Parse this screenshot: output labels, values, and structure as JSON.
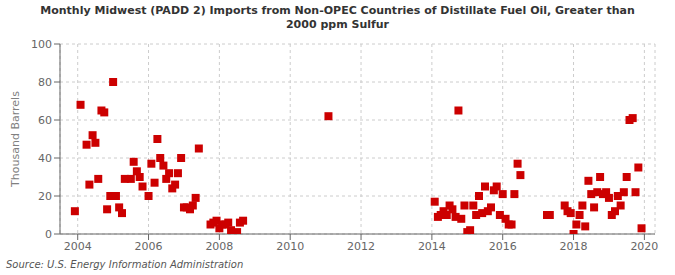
{
  "chart_data": {
    "type": "scatter",
    "title": "Monthly Midwest (PADD 2) Imports from Non-OPEC Countries of Distillate Fuel Oil, Greater than\n2000 ppm Sulfur",
    "ylabel": "Thousand Barrels",
    "annotation": "Source: U.S. Energy Information Administration",
    "color": "#cc0000",
    "marker": "square",
    "grid": true,
    "xlim": [
      2003.5,
      2020.3
    ],
    "ylim": [
      0,
      100
    ],
    "xticks": [
      2004,
      2006,
      2008,
      2010,
      2012,
      2014,
      2016,
      2018,
      2020
    ],
    "yticks": [
      0,
      20,
      40,
      60,
      80,
      100
    ],
    "x": [
      2003.92,
      2004.08,
      2004.25,
      2004.33,
      2004.42,
      2004.5,
      2004.58,
      2004.67,
      2004.75,
      2004.83,
      2004.92,
      2005.0,
      2005.08,
      2005.17,
      2005.25,
      2005.33,
      2005.5,
      2005.58,
      2005.67,
      2005.75,
      2005.83,
      2006.0,
      2006.08,
      2006.17,
      2006.25,
      2006.33,
      2006.42,
      2006.5,
      2006.58,
      2006.67,
      2006.75,
      2006.83,
      2006.92,
      2007.0,
      2007.08,
      2007.17,
      2007.25,
      2007.33,
      2007.42,
      2007.75,
      2007.83,
      2007.92,
      2008.0,
      2008.08,
      2008.17,
      2008.25,
      2008.33,
      2008.5,
      2008.58,
      2008.67,
      2011.08,
      2014.08,
      2014.17,
      2014.25,
      2014.33,
      2014.42,
      2014.5,
      2014.58,
      2014.67,
      2014.75,
      2014.83,
      2014.92,
      2015.0,
      2015.08,
      2015.17,
      2015.25,
      2015.33,
      2015.42,
      2015.5,
      2015.58,
      2015.67,
      2015.75,
      2015.83,
      2015.92,
      2016.0,
      2016.08,
      2016.17,
      2016.25,
      2016.33,
      2016.42,
      2016.5,
      2017.25,
      2017.33,
      2017.75,
      2017.83,
      2017.92,
      2018.0,
      2018.08,
      2018.17,
      2018.25,
      2018.33,
      2018.42,
      2018.5,
      2018.58,
      2018.67,
      2018.75,
      2018.83,
      2018.92,
      2019.0,
      2019.08,
      2019.17,
      2019.25,
      2019.33,
      2019.42,
      2019.5,
      2019.58,
      2019.67,
      2019.75,
      2019.83,
      2019.92
    ],
    "values": [
      12,
      68,
      47,
      26,
      52,
      48,
      29,
      65,
      64,
      13,
      20,
      80,
      20,
      14,
      11,
      29,
      29,
      38,
      33,
      30,
      25,
      20,
      37,
      27,
      50,
      40,
      36,
      29,
      32,
      24,
      26,
      32,
      40,
      14,
      14,
      13,
      15,
      19,
      45,
      5,
      6,
      7,
      3,
      5,
      5,
      6,
      2,
      1,
      6,
      7,
      62,
      17,
      9,
      10,
      12,
      10,
      15,
      13,
      9,
      65,
      8,
      15,
      1,
      2,
      15,
      10,
      20,
      11,
      25,
      12,
      14,
      23,
      25,
      10,
      21,
      8,
      5,
      5,
      21,
      37,
      31,
      10,
      10,
      15,
      12,
      11,
      0,
      5,
      10,
      15,
      4,
      28,
      21,
      14,
      22,
      30,
      21,
      22,
      19,
      10,
      12,
      20,
      15,
      22,
      30,
      60,
      61,
      22,
      35,
      3
    ]
  }
}
